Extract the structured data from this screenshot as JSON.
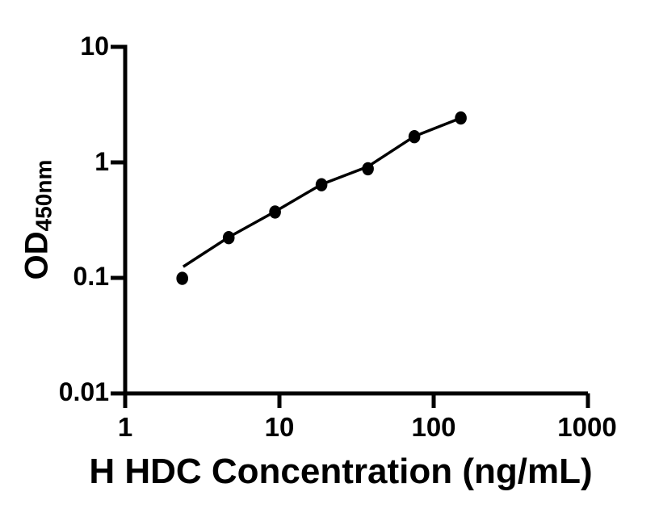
{
  "figure": {
    "background": "#ffffff",
    "ink": "#000000",
    "x_axis": {
      "title": "H HDC Concentration (ng/mL)",
      "tick_labels": [
        "1",
        "10",
        "100",
        "1000"
      ]
    },
    "y_axis": {
      "title_main": "OD",
      "title_sub": "450nm",
      "tick_labels_top_to_bottom": [
        "10",
        "1",
        "0.1",
        "0.01"
      ]
    }
  },
  "chart_data": {
    "type": "scatter",
    "title": "",
    "xlabel": "H HDC Concentration (ng/mL)",
    "ylabel": "OD450nm",
    "x_scale": "log",
    "y_scale": "log",
    "xlim": [
      1,
      1000
    ],
    "ylim": [
      0.01,
      10
    ],
    "x_ticks": [
      1,
      10,
      100,
      1000
    ],
    "y_ticks": [
      0.01,
      0.1,
      1,
      10
    ],
    "grid": false,
    "legend": false,
    "series": [
      {
        "name": "standard-curve-points",
        "marker": "filled-circle",
        "color": "#000000",
        "x": [
          2.344,
          4.688,
          9.375,
          18.75,
          37.5,
          75,
          150
        ],
        "y": [
          0.099,
          0.223,
          0.372,
          0.64,
          0.88,
          1.67,
          2.42
        ]
      }
    ],
    "fit_line": {
      "name": "fitted-curve",
      "color": "#000000",
      "x": [
        2.38,
        4.688,
        9.375,
        18.75,
        37.5,
        75,
        150
      ],
      "y": [
        0.125,
        0.225,
        0.375,
        0.645,
        0.92,
        1.68,
        2.42
      ]
    }
  }
}
